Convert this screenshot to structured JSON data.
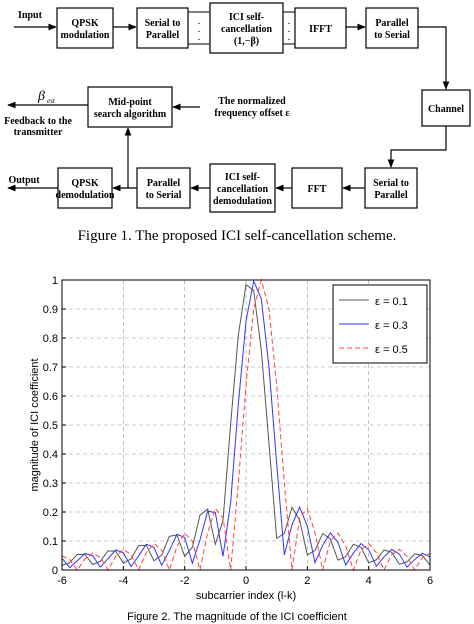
{
  "diagram": {
    "input": "Input",
    "output": "Output",
    "nodes": [
      {
        "lines": [
          "QPSK",
          "modulation"
        ]
      },
      {
        "lines": [
          "Serial to",
          "Parallel"
        ]
      },
      {
        "lines": [
          "ICI self-",
          "cancellation",
          "(1,−β)"
        ]
      },
      {
        "lines": [
          "IFFT"
        ]
      },
      {
        "lines": [
          "Parallel",
          "to Serial"
        ]
      },
      {
        "lines": [
          "Channel"
        ]
      },
      {
        "lines": [
          "Serial to",
          "Parallel"
        ]
      },
      {
        "lines": [
          "FFT"
        ]
      },
      {
        "lines": [
          "ICI self-",
          "cancellation",
          "demodulation"
        ]
      },
      {
        "lines": [
          "Parallel",
          "to Serial"
        ]
      },
      {
        "lines": [
          "QPSK",
          "demodulation"
        ]
      },
      {
        "lines": [
          "Mid-point",
          "search algorithm"
        ]
      }
    ],
    "offset_label": [
      "The normalized",
      "frequency offset ε"
    ],
    "beta": "β",
    "beta_subscript": "est",
    "feedback": [
      "Feedback to the",
      "transmitter"
    ],
    "caption": "Figure 1. The proposed ICI self-cancellation scheme."
  },
  "chart_data": {
    "type": "line",
    "xlabel": "subcarrier index (l-k)",
    "ylabel": "magnitude of ICI coefficient",
    "caption": "Figure 2. The magnitude of the ICI coefficient",
    "xlim": [
      -6,
      6
    ],
    "ylim": [
      0,
      1
    ],
    "xticks": [
      -6,
      -4,
      -2,
      0,
      2,
      4,
      6
    ],
    "yticks": [
      0,
      0.1,
      0.2,
      0.3,
      0.4,
      0.5,
      0.6,
      0.7,
      0.8,
      0.9,
      1
    ],
    "grid": true,
    "grid_style": "dashed",
    "legend": "upper right",
    "x": [
      -6,
      -5.75,
      -5.5,
      -5.25,
      -5,
      -4.75,
      -4.5,
      -4.25,
      -4,
      -3.75,
      -3.5,
      -3.25,
      -3,
      -2.75,
      -2.5,
      -2.25,
      -2,
      -1.75,
      -1.5,
      -1.25,
      -1,
      -0.75,
      -0.5,
      -0.25,
      0,
      0.25,
      0.5,
      0.75,
      1,
      1.25,
      1.5,
      1.75,
      2,
      2.25,
      2.5,
      2.75,
      3,
      3.25,
      3.5,
      3.75,
      4,
      4.25,
      4.5,
      4.75,
      5,
      5.25,
      5.5,
      5.75,
      6
    ],
    "series": [
      {
        "name": "ε = 0.1",
        "color": "#555555",
        "line_style": "solid",
        "values": [
          0.016,
          0.025,
          0.054,
          0.053,
          0.019,
          0.03,
          0.066,
          0.065,
          0.024,
          0.038,
          0.084,
          0.085,
          0.032,
          0.051,
          0.116,
          0.121,
          0.047,
          0.078,
          0.189,
          0.21,
          0.089,
          0.17,
          0.505,
          0.81,
          0.984,
          0.964,
          0.757,
          0.436,
          0.109,
          0.126,
          0.216,
          0.172,
          0.052,
          0.067,
          0.126,
          0.107,
          0.034,
          0.046,
          0.089,
          0.078,
          0.025,
          0.035,
          0.069,
          0.061,
          0.02,
          0.028,
          0.056,
          0.05,
          0.017
        ]
      },
      {
        "name": "ε = 0.3",
        "color": "#3333ff",
        "line_style": "solid",
        "values": [
          0.041,
          0.008,
          0.032,
          0.057,
          0.049,
          0.01,
          0.039,
          0.069,
          0.06,
          0.012,
          0.049,
          0.089,
          0.078,
          0.016,
          0.067,
          0.123,
          0.112,
          0.024,
          0.104,
          0.203,
          0.198,
          0.047,
          0.234,
          0.572,
          0.858,
          0.996,
          0.935,
          0.699,
          0.368,
          0.052,
          0.156,
          0.217,
          0.151,
          0.025,
          0.085,
          0.128,
          0.095,
          0.017,
          0.058,
          0.091,
          0.07,
          0.013,
          0.045,
          0.071,
          0.055,
          0.01,
          0.036,
          0.058,
          0.045
        ]
      },
      {
        "name": "ε = 0.5",
        "color": "#ff4444",
        "line_style": "dashed",
        "values": [
          0.049,
          0.036,
          0,
          0.039,
          0.058,
          0.043,
          0,
          0.047,
          0.071,
          0.053,
          0,
          0.06,
          0.091,
          0.069,
          0,
          0.082,
          0.127,
          0.1,
          0,
          0.129,
          0.212,
          0.18,
          0,
          0.3,
          0.637,
          0.9,
          1,
          0.9,
          0.637,
          0.3,
          0,
          0.18,
          0.212,
          0.129,
          0,
          0.1,
          0.127,
          0.082,
          0,
          0.069,
          0.091,
          0.06,
          0,
          0.053,
          0.071,
          0.047,
          0,
          0.043,
          0.058
        ]
      }
    ]
  }
}
